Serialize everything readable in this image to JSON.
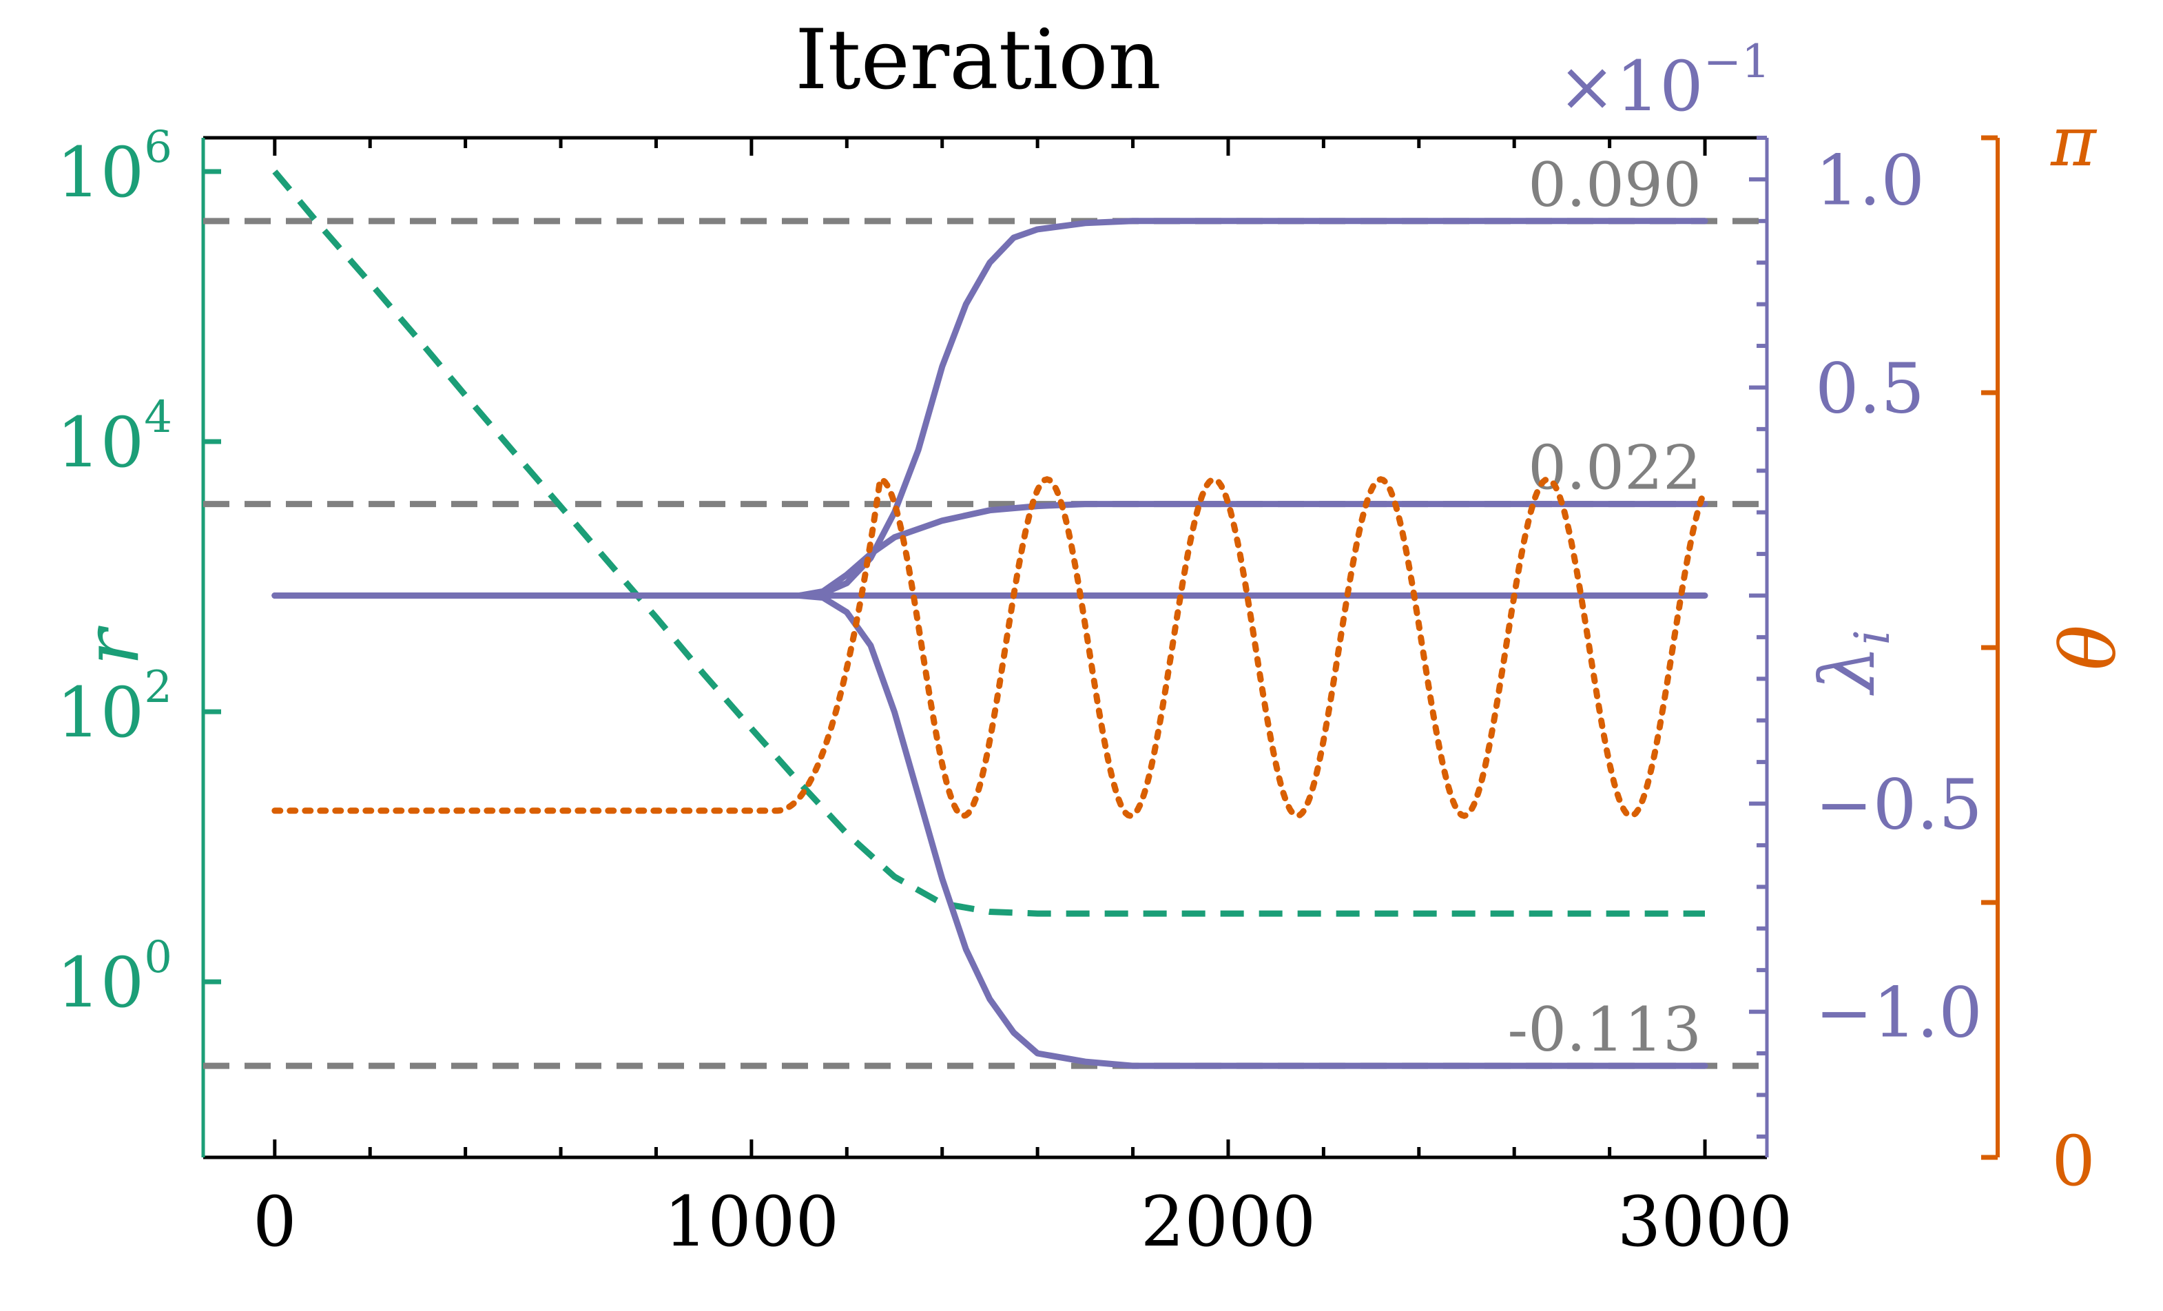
{
  "colors": {
    "r": "#1b9e77",
    "lambda": "#7570b3",
    "theta": "#d95f02",
    "reference": "#808080",
    "frame": "#000000"
  },
  "chart_data": {
    "type": "line",
    "title": "Iteration",
    "x_axis": {
      "range": [
        -150,
        3130
      ],
      "ticks": [
        0,
        1000,
        2000,
        3000
      ],
      "tick_labels": [
        "0",
        "1000",
        "2000",
        "3000"
      ],
      "position": "bottom"
    },
    "y_left": {
      "label": "r",
      "scale": "log",
      "range_log10": [
        -1.3,
        6.25
      ],
      "ticks": [
        0,
        2,
        4,
        6
      ],
      "tick_labels": [
        "10^0",
        "10^2",
        "10^4",
        "10^6"
      ],
      "color": "#1b9e77"
    },
    "y_right_lambda": {
      "label": "λ_i",
      "range": [
        -0.135,
        0.11
      ],
      "ticks": [
        -0.1,
        -0.05,
        0.05,
        0.1
      ],
      "tick_labels": [
        "−1.0",
        "−0.5",
        "0.5",
        "1.0"
      ],
      "multiplier_label": "×10^−1",
      "color": "#7570b3"
    },
    "y_right_theta": {
      "label": "θ",
      "range_label": [
        "0",
        "π"
      ],
      "color": "#d95f02"
    },
    "reference_lines": [
      {
        "value": 0.09,
        "label": "0.090"
      },
      {
        "value": 0.022,
        "label": "0.022"
      },
      {
        "value": -0.113,
        "label": "-0.113"
      }
    ],
    "series": [
      {
        "key": "r",
        "axis": "left-log",
        "style": "dashed",
        "points": [
          [
            0,
            1000000
          ],
          [
            100,
            380000
          ],
          [
            200,
            150000
          ],
          [
            300,
            58000
          ],
          [
            400,
            22000
          ],
          [
            500,
            8500
          ],
          [
            600,
            3300
          ],
          [
            700,
            1280
          ],
          [
            800,
            500
          ],
          [
            900,
            190
          ],
          [
            1000,
            75
          ],
          [
            1100,
            30
          ],
          [
            1200,
            12.5
          ],
          [
            1300,
            6
          ],
          [
            1400,
            3.8
          ],
          [
            1500,
            3.3
          ],
          [
            1600,
            3.2
          ],
          [
            3000,
            3.2
          ]
        ]
      },
      {
        "key": "lambda_1",
        "axis": "right-lambda",
        "style": "solid",
        "points": [
          [
            0,
            0
          ],
          [
            1100,
            0
          ],
          [
            1150,
            0.0005
          ],
          [
            1200,
            0.003
          ],
          [
            1250,
            0.009
          ],
          [
            1300,
            0.02
          ],
          [
            1350,
            0.035
          ],
          [
            1400,
            0.055
          ],
          [
            1450,
            0.07
          ],
          [
            1500,
            0.08
          ],
          [
            1550,
            0.086
          ],
          [
            1600,
            0.088
          ],
          [
            1700,
            0.0895
          ],
          [
            1800,
            0.09
          ],
          [
            3000,
            0.09
          ]
        ]
      },
      {
        "key": "lambda_2",
        "axis": "right-lambda",
        "style": "solid",
        "points": [
          [
            0,
            0
          ],
          [
            1100,
            0
          ],
          [
            1150,
            0.001
          ],
          [
            1200,
            0.005
          ],
          [
            1250,
            0.01
          ],
          [
            1300,
            0.014
          ],
          [
            1400,
            0.018
          ],
          [
            1500,
            0.0205
          ],
          [
            1600,
            0.0215
          ],
          [
            1700,
            0.022
          ],
          [
            3000,
            0.022
          ]
        ]
      },
      {
        "key": "lambda_3",
        "axis": "right-lambda",
        "style": "solid",
        "points": [
          [
            0,
            0
          ],
          [
            3000,
            0
          ]
        ]
      },
      {
        "key": "lambda_4",
        "axis": "right-lambda",
        "style": "solid",
        "points": [
          [
            0,
            0
          ],
          [
            1100,
            0
          ],
          [
            1150,
            -0.0005
          ],
          [
            1200,
            -0.004
          ],
          [
            1250,
            -0.012
          ],
          [
            1300,
            -0.028
          ],
          [
            1350,
            -0.048
          ],
          [
            1400,
            -0.068
          ],
          [
            1450,
            -0.085
          ],
          [
            1500,
            -0.097
          ],
          [
            1550,
            -0.105
          ],
          [
            1600,
            -0.11
          ],
          [
            1700,
            -0.112
          ],
          [
            1800,
            -0.113
          ],
          [
            3000,
            -0.113
          ]
        ]
      },
      {
        "key": "theta",
        "axis": "right-theta",
        "style": "dotted",
        "base_fraction": 0.34,
        "onset": 1050,
        "first_peak": 1270,
        "period": 350,
        "high_fraction": 0.665,
        "low_fraction": 0.335,
        "end": 3000
      }
    ]
  }
}
